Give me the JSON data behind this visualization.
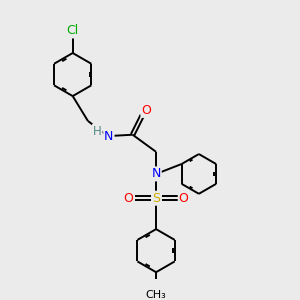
{
  "bg_color": "#ebebeb",
  "bond_color": "#000000",
  "atom_colors": {
    "Cl": "#00aa00",
    "N": "#0000ff",
    "O": "#ff0000",
    "S": "#ccaa00",
    "H": "#558888",
    "C": "#000000"
  },
  "bond_width": 1.4,
  "font_size_atom": 8.5
}
